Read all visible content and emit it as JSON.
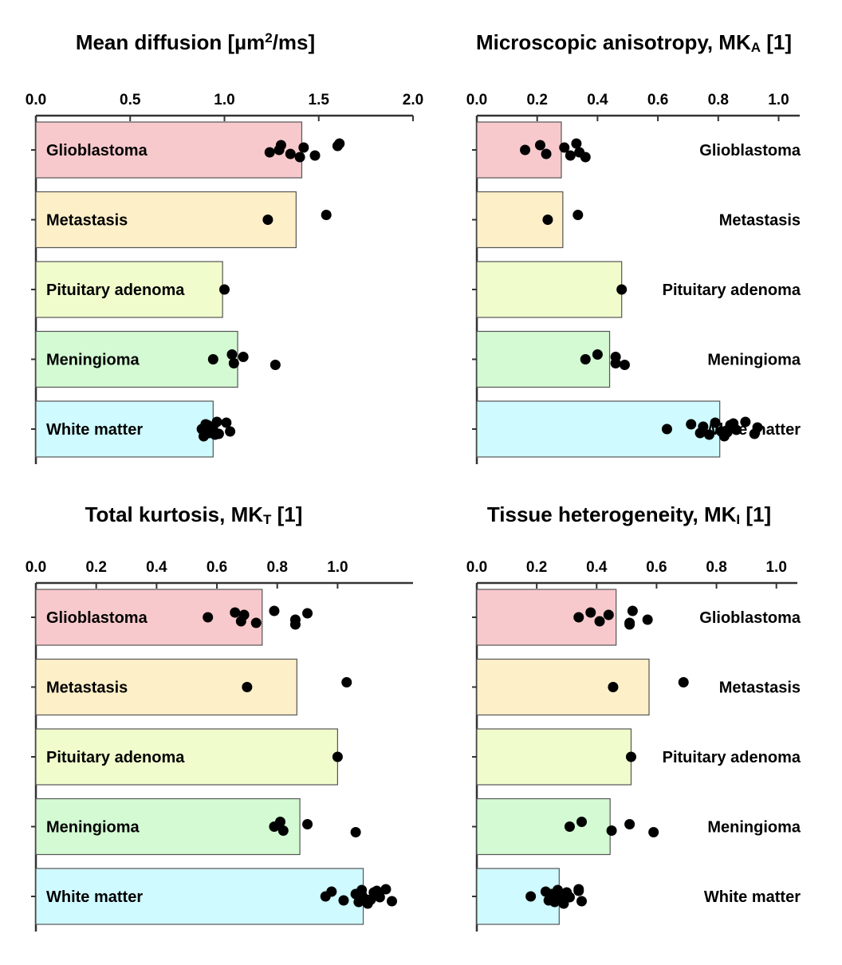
{
  "categories": [
    "Glioblastoma",
    "Metastasis",
    "Pituitary adenoma",
    "Meningioma",
    "White matter"
  ],
  "colors": {
    "bars": [
      "#f8c9cc",
      "#fdefc8",
      "#f0fccc",
      "#d3fad3",
      "#cffaff"
    ],
    "bar_stroke": "#555555",
    "point": "#000000",
    "axis": "#333333"
  },
  "chart_data": [
    {
      "type": "bar",
      "title": "Mean diffusion [µm²/ms]",
      "title_main": "Mean diffusion [µm",
      "title_sup": "2",
      "title_tail": "/ms]",
      "xlim": [
        0,
        2.0
      ],
      "ticks": [
        0,
        0.5,
        1.0,
        1.5,
        2.0
      ],
      "tick_labels": [
        "0.0",
        "0.5",
        "1.0",
        "1.5",
        "2.0"
      ],
      "label_side": "left",
      "values": [
        1.41,
        1.38,
        0.99,
        1.07,
        0.94
      ],
      "points": [
        [
          1.29,
          1.3,
          1.35,
          1.42,
          1.48,
          1.61,
          1.24,
          1.4,
          1.6
        ],
        [
          1.23,
          1.54
        ],
        [
          1.0
        ],
        [
          0.94,
          1.04,
          1.05,
          1.1,
          1.27
        ],
        [
          0.88,
          0.9,
          0.92,
          0.94,
          0.95,
          1.01,
          1.03,
          0.89,
          0.91,
          0.93,
          0.96,
          0.97
        ]
      ]
    },
    {
      "type": "bar",
      "title": "Microscopic anisotropy, MKA [1]",
      "title_main": "Microscopic anisotropy, MK",
      "title_sub": "A",
      "title_tail": " [1]",
      "xlim": [
        0,
        1.07
      ],
      "ticks": [
        0,
        0.2,
        0.4,
        0.6,
        0.8,
        1.0
      ],
      "tick_labels": [
        "0.0",
        "0.2",
        "0.4",
        "0.6",
        "0.8",
        "1.0"
      ],
      "label_side": "right",
      "values": [
        0.28,
        0.285,
        0.48,
        0.44,
        0.805
      ],
      "points": [
        [
          0.16,
          0.21,
          0.23,
          0.29,
          0.31,
          0.33,
          0.34,
          0.36
        ],
        [
          0.235,
          0.335
        ],
        [
          0.48
        ],
        [
          0.36,
          0.4,
          0.46,
          0.46,
          0.49
        ],
        [
          0.63,
          0.71,
          0.74,
          0.75,
          0.77,
          0.79,
          0.81,
          0.82,
          0.84,
          0.86,
          0.89,
          0.92,
          0.93,
          0.83,
          0.85
        ]
      ]
    },
    {
      "type": "bar",
      "title": "Total kurtosis, MKT [1]",
      "title_main": "Total kurtosis, MK",
      "title_sub": "T",
      "title_tail": " [1]",
      "xlim": [
        0,
        1.25
      ],
      "ticks": [
        0,
        0.2,
        0.4,
        0.6,
        0.8,
        1.0
      ],
      "tick_labels": [
        "0.0",
        "0.2",
        "0.4",
        "0.6",
        "0.8",
        "1.0"
      ],
      "label_side": "left",
      "values": [
        0.75,
        0.865,
        1.0,
        0.875,
        1.085
      ],
      "points": [
        [
          0.57,
          0.66,
          0.68,
          0.69,
          0.73,
          0.79,
          0.86,
          0.86,
          0.9
        ],
        [
          0.7,
          1.03
        ],
        [
          1.0
        ],
        [
          0.79,
          0.81,
          0.82,
          0.9,
          1.06
        ],
        [
          0.96,
          0.98,
          1.02,
          1.06,
          1.07,
          1.08,
          1.09,
          1.1,
          1.12,
          1.14,
          1.16,
          1.18,
          1.08,
          1.11,
          1.13
        ]
      ]
    },
    {
      "type": "bar",
      "title": "Tissue heterogeneity, MKI [1]",
      "title_main": "Tissue heterogeneity, MK",
      "title_sub": "I",
      "title_tail": " [1]",
      "xlim": [
        0,
        1.07
      ],
      "ticks": [
        0,
        0.2,
        0.4,
        0.6,
        0.8,
        1.0
      ],
      "tick_labels": [
        "0.0",
        "0.2",
        "0.4",
        "0.6",
        "0.8",
        "1.0"
      ],
      "label_side": "right",
      "values": [
        0.465,
        0.575,
        0.515,
        0.445,
        0.275
      ],
      "points": [
        [
          0.34,
          0.38,
          0.41,
          0.44,
          0.51,
          0.52,
          0.57,
          0.51
        ],
        [
          0.455,
          0.69
        ],
        [
          0.515
        ],
        [
          0.31,
          0.35,
          0.45,
          0.51,
          0.59
        ],
        [
          0.18,
          0.23,
          0.24,
          0.25,
          0.26,
          0.27,
          0.28,
          0.29,
          0.3,
          0.31,
          0.34,
          0.35,
          0.25,
          0.27,
          0.34
        ]
      ]
    }
  ]
}
